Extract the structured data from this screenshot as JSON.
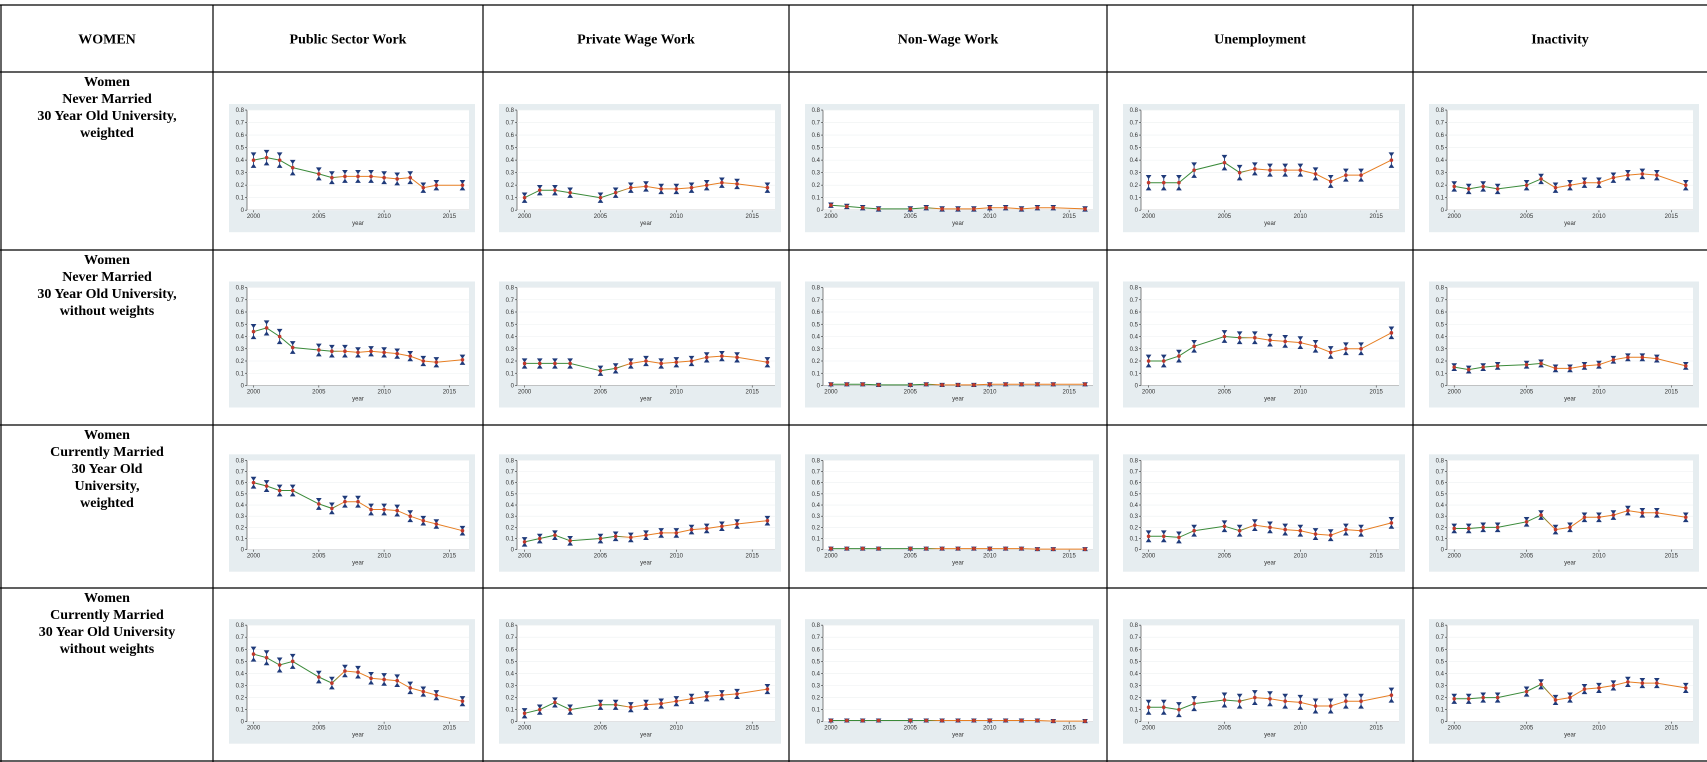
{
  "header": {
    "corner": "WOMEN",
    "columns": [
      "Public Sector Work",
      "Private Wage Work",
      "Non-Wage Work",
      "Unemployment",
      "Inactivity"
    ]
  },
  "axes": {
    "x": [
      2000,
      2001,
      2002,
      2003,
      2005,
      2006,
      2007,
      2008,
      2009,
      2010,
      2011,
      2012,
      2013,
      2014,
      2016
    ],
    "xlim": [
      1999.5,
      2016.5
    ],
    "xticks": [
      2000,
      2005,
      2010,
      2015
    ],
    "xlabel": "year",
    "ylim": [
      0,
      0.8
    ],
    "yticks": [
      0,
      0.1,
      0.2,
      0.3,
      0.4,
      0.5,
      0.6,
      0.7,
      0.8
    ],
    "grid": true,
    "point_color": "#c0392b",
    "error_color": "#1f3a7a",
    "line_colors": [
      "#3a8a3a",
      "#e67e22"
    ],
    "panel_bg": "#e6edf0"
  },
  "rows": [
    {
      "label": [
        "Women",
        "Never Married",
        "30 Year Old University,",
        "weighted"
      ],
      "panels": [
        {
          "values": [
            0.4,
            0.42,
            0.4,
            0.34,
            0.29,
            0.26,
            0.27,
            0.27,
            0.27,
            0.26,
            0.25,
            0.26,
            0.18,
            0.2,
            0.2
          ],
          "errors": [
            0.05,
            0.05,
            0.05,
            0.05,
            0.04,
            0.04,
            0.04,
            0.04,
            0.04,
            0.04,
            0.04,
            0.04,
            0.03,
            0.03,
            0.03
          ]
        },
        {
          "values": [
            0.1,
            0.16,
            0.16,
            0.14,
            0.1,
            0.14,
            0.18,
            0.19,
            0.17,
            0.17,
            0.18,
            0.2,
            0.22,
            0.21,
            0.18
          ],
          "errors": [
            0.03,
            0.03,
            0.03,
            0.03,
            0.03,
            0.03,
            0.03,
            0.03,
            0.03,
            0.03,
            0.03,
            0.03,
            0.03,
            0.03,
            0.03
          ]
        },
        {
          "values": [
            0.04,
            0.03,
            0.02,
            0.01,
            0.01,
            0.02,
            0.01,
            0.01,
            0.01,
            0.02,
            0.02,
            0.01,
            0.02,
            0.02,
            0.01
          ],
          "errors": [
            0.01,
            0.01,
            0.01,
            0.01,
            0.01,
            0.01,
            0.01,
            0.01,
            0.01,
            0.01,
            0.01,
            0.01,
            0.01,
            0.01,
            0.01
          ]
        },
        {
          "values": [
            0.22,
            0.22,
            0.22,
            0.32,
            0.38,
            0.3,
            0.33,
            0.32,
            0.32,
            0.32,
            0.29,
            0.23,
            0.28,
            0.28,
            0.4
          ],
          "errors": [
            0.05,
            0.05,
            0.05,
            0.05,
            0.05,
            0.05,
            0.04,
            0.04,
            0.04,
            0.04,
            0.04,
            0.04,
            0.04,
            0.04,
            0.05
          ]
        },
        {
          "values": [
            0.19,
            0.17,
            0.19,
            0.17,
            0.2,
            0.25,
            0.18,
            0.2,
            0.22,
            0.22,
            0.26,
            0.28,
            0.29,
            0.28,
            0.2
          ],
          "errors": [
            0.03,
            0.03,
            0.03,
            0.03,
            0.03,
            0.03,
            0.03,
            0.03,
            0.03,
            0.03,
            0.03,
            0.03,
            0.03,
            0.03,
            0.03
          ]
        }
      ]
    },
    {
      "label": [
        "Women",
        "Never Married",
        "30 Year Old University,",
        "without weights"
      ],
      "panels": [
        {
          "values": [
            0.44,
            0.47,
            0.4,
            0.31,
            0.29,
            0.28,
            0.28,
            0.27,
            0.28,
            0.27,
            0.26,
            0.24,
            0.2,
            0.19,
            0.21
          ],
          "errors": [
            0.05,
            0.05,
            0.05,
            0.04,
            0.04,
            0.04,
            0.04,
            0.03,
            0.03,
            0.03,
            0.03,
            0.03,
            0.03,
            0.03,
            0.03
          ]
        },
        {
          "values": [
            0.18,
            0.18,
            0.18,
            0.18,
            0.12,
            0.14,
            0.18,
            0.2,
            0.18,
            0.19,
            0.2,
            0.23,
            0.24,
            0.23,
            0.19
          ],
          "errors": [
            0.03,
            0.03,
            0.03,
            0.03,
            0.03,
            0.03,
            0.03,
            0.03,
            0.03,
            0.03,
            0.03,
            0.03,
            0.03,
            0.03,
            0.03
          ]
        },
        {
          "values": [
            0.01,
            0.01,
            0.01,
            0.005,
            0.005,
            0.01,
            0.005,
            0.005,
            0.005,
            0.01,
            0.01,
            0.01,
            0.01,
            0.01,
            0.01
          ],
          "errors": [
            0.005,
            0.005,
            0.005,
            0.005,
            0.005,
            0.005,
            0.005,
            0.005,
            0.005,
            0.005,
            0.005,
            0.005,
            0.005,
            0.005,
            0.005
          ]
        },
        {
          "values": [
            0.2,
            0.2,
            0.24,
            0.32,
            0.4,
            0.39,
            0.39,
            0.37,
            0.36,
            0.35,
            0.32,
            0.27,
            0.3,
            0.3,
            0.43
          ],
          "errors": [
            0.04,
            0.04,
            0.04,
            0.04,
            0.04,
            0.04,
            0.04,
            0.04,
            0.04,
            0.04,
            0.04,
            0.04,
            0.04,
            0.04,
            0.04
          ]
        },
        {
          "values": [
            0.15,
            0.13,
            0.15,
            0.16,
            0.17,
            0.18,
            0.14,
            0.14,
            0.16,
            0.17,
            0.21,
            0.23,
            0.23,
            0.22,
            0.16
          ],
          "errors": [
            0.02,
            0.02,
            0.02,
            0.02,
            0.02,
            0.02,
            0.02,
            0.02,
            0.02,
            0.02,
            0.02,
            0.02,
            0.02,
            0.02,
            0.02
          ]
        }
      ]
    },
    {
      "label": [
        "Women",
        "Currently Married",
        "30 Year Old",
        "University,",
        "weighted"
      ],
      "panels": [
        {
          "values": [
            0.6,
            0.57,
            0.53,
            0.53,
            0.41,
            0.37,
            0.43,
            0.43,
            0.36,
            0.36,
            0.35,
            0.3,
            0.26,
            0.23,
            0.17
          ],
          "errors": [
            0.04,
            0.04,
            0.04,
            0.04,
            0.04,
            0.04,
            0.04,
            0.04,
            0.04,
            0.04,
            0.04,
            0.04,
            0.03,
            0.03,
            0.03
          ]
        },
        {
          "values": [
            0.07,
            0.1,
            0.13,
            0.08,
            0.1,
            0.12,
            0.11,
            0.13,
            0.15,
            0.15,
            0.18,
            0.19,
            0.21,
            0.23,
            0.26
          ],
          "errors": [
            0.03,
            0.03,
            0.03,
            0.03,
            0.03,
            0.03,
            0.03,
            0.03,
            0.03,
            0.03,
            0.03,
            0.03,
            0.03,
            0.03,
            0.03
          ]
        },
        {
          "values": [
            0.01,
            0.01,
            0.01,
            0.01,
            0.01,
            0.01,
            0.01,
            0.01,
            0.01,
            0.01,
            0.01,
            0.01,
            0.005,
            0.005,
            0.005
          ],
          "errors": [
            0.005,
            0.005,
            0.005,
            0.005,
            0.005,
            0.005,
            0.005,
            0.005,
            0.005,
            0.005,
            0.005,
            0.005,
            0.005,
            0.005,
            0.005
          ]
        },
        {
          "values": [
            0.12,
            0.12,
            0.11,
            0.17,
            0.21,
            0.17,
            0.22,
            0.2,
            0.18,
            0.17,
            0.14,
            0.13,
            0.18,
            0.17,
            0.24
          ],
          "errors": [
            0.04,
            0.04,
            0.04,
            0.04,
            0.04,
            0.04,
            0.04,
            0.04,
            0.04,
            0.04,
            0.04,
            0.04,
            0.04,
            0.04,
            0.04
          ]
        },
        {
          "values": [
            0.19,
            0.19,
            0.2,
            0.2,
            0.25,
            0.31,
            0.18,
            0.2,
            0.29,
            0.29,
            0.31,
            0.35,
            0.33,
            0.33,
            0.29
          ],
          "errors": [
            0.03,
            0.03,
            0.03,
            0.03,
            0.03,
            0.03,
            0.03,
            0.03,
            0.03,
            0.03,
            0.03,
            0.03,
            0.03,
            0.03,
            0.03
          ]
        }
      ]
    },
    {
      "label": [
        "Women",
        "Currently Married",
        "30 Year Old University",
        "without weights"
      ],
      "panels": [
        {
          "values": [
            0.56,
            0.53,
            0.47,
            0.5,
            0.37,
            0.32,
            0.42,
            0.41,
            0.36,
            0.35,
            0.34,
            0.28,
            0.25,
            0.22,
            0.17
          ],
          "errors": [
            0.05,
            0.05,
            0.05,
            0.05,
            0.04,
            0.04,
            0.04,
            0.04,
            0.04,
            0.04,
            0.04,
            0.04,
            0.03,
            0.03,
            0.03
          ]
        },
        {
          "values": [
            0.07,
            0.1,
            0.16,
            0.1,
            0.14,
            0.14,
            0.12,
            0.14,
            0.15,
            0.17,
            0.19,
            0.21,
            0.22,
            0.23,
            0.27
          ],
          "errors": [
            0.03,
            0.03,
            0.03,
            0.03,
            0.03,
            0.03,
            0.03,
            0.03,
            0.03,
            0.03,
            0.03,
            0.03,
            0.03,
            0.03,
            0.03
          ]
        },
        {
          "values": [
            0.01,
            0.01,
            0.01,
            0.01,
            0.01,
            0.01,
            0.01,
            0.01,
            0.01,
            0.01,
            0.01,
            0.01,
            0.01,
            0.005,
            0.005
          ],
          "errors": [
            0.005,
            0.005,
            0.005,
            0.005,
            0.005,
            0.005,
            0.005,
            0.005,
            0.005,
            0.005,
            0.005,
            0.005,
            0.005,
            0.005,
            0.005
          ]
        },
        {
          "values": [
            0.12,
            0.12,
            0.1,
            0.15,
            0.18,
            0.17,
            0.2,
            0.19,
            0.17,
            0.16,
            0.13,
            0.13,
            0.17,
            0.17,
            0.22
          ],
          "errors": [
            0.05,
            0.05,
            0.05,
            0.05,
            0.05,
            0.05,
            0.05,
            0.05,
            0.05,
            0.05,
            0.05,
            0.05,
            0.05,
            0.05,
            0.05
          ]
        },
        {
          "values": [
            0.19,
            0.19,
            0.2,
            0.2,
            0.25,
            0.31,
            0.18,
            0.2,
            0.27,
            0.28,
            0.3,
            0.33,
            0.32,
            0.32,
            0.28
          ],
          "errors": [
            0.03,
            0.03,
            0.03,
            0.03,
            0.03,
            0.03,
            0.03,
            0.03,
            0.03,
            0.03,
            0.03,
            0.03,
            0.03,
            0.03,
            0.03
          ]
        }
      ]
    }
  ]
}
